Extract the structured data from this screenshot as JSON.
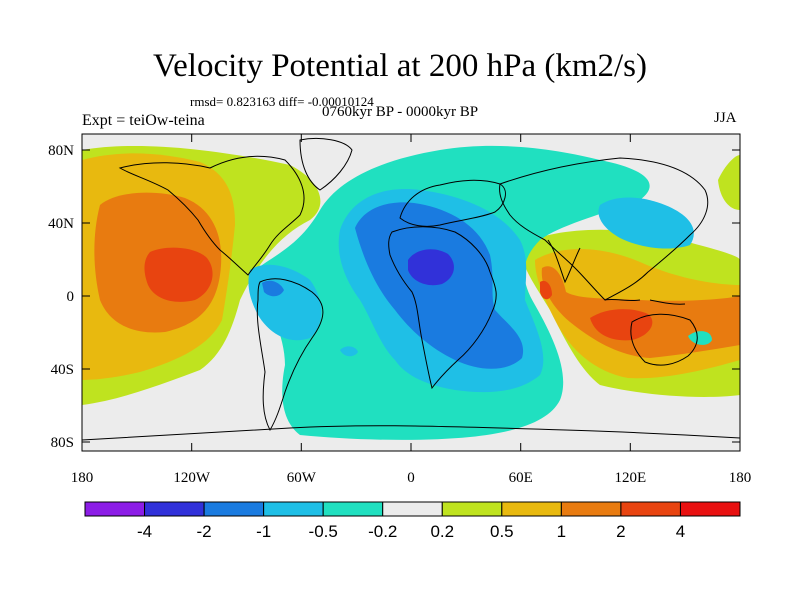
{
  "title": "Velocity Potential at 200 hPa (km2/s)",
  "stats": "rmsd= 0.823163 diff= -0.00010124",
  "experiment": "Expt = teiOw-teina",
  "period": "0760kyr BP - 0000kyr BP",
  "season": "JJA",
  "map": {
    "lon_ticks": [
      "180",
      "120W",
      "60W",
      "0",
      "60E",
      "120E",
      "180"
    ],
    "lat_ticks": [
      "80N",
      "40N",
      "0",
      "40S",
      "80S"
    ]
  },
  "colorbar": {
    "colors": [
      "#8c1de6",
      "#3131d9",
      "#1a7be0",
      "#1fbfe6",
      "#20e0c0",
      "#ececec",
      "#bfe31f",
      "#e8b90f",
      "#e87b10",
      "#e84410",
      "#e81010"
    ],
    "labels": [
      "-4",
      "-2",
      "-1",
      "-0.5",
      "-0.2",
      "0.2",
      "0.5",
      "1",
      "2",
      "4"
    ]
  }
}
